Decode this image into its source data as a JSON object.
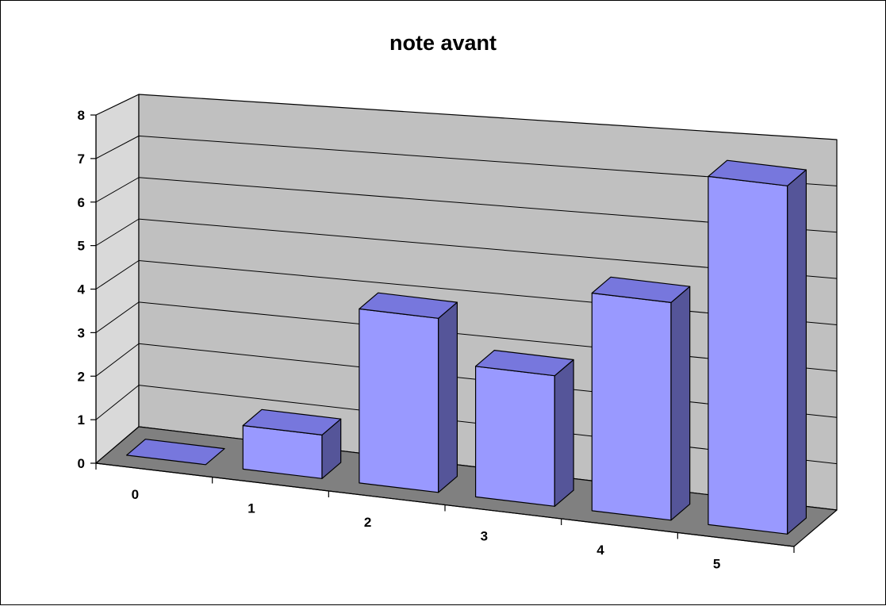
{
  "chart_data": {
    "type": "bar",
    "title": "note avant",
    "categories": [
      "0",
      "1",
      "2",
      "3",
      "4",
      "5"
    ],
    "values": [
      0,
      1,
      4,
      3,
      5,
      8
    ],
    "ylim": [
      0,
      8
    ],
    "yticks": [
      "0",
      "1",
      "2",
      "3",
      "4",
      "5",
      "6",
      "7",
      "8"
    ],
    "xlabel": "",
    "ylabel": "",
    "grid": true,
    "legend": "none",
    "style": "3d-column"
  },
  "colors": {
    "bar_front": "#9999ff",
    "bar_top": "#7777dd",
    "bar_side": "#555599",
    "back_wall": "#c0c0c0",
    "side_wall": "#d9d9d9",
    "floor": "#808080",
    "gridline": "#000000",
    "border": "#000000"
  }
}
